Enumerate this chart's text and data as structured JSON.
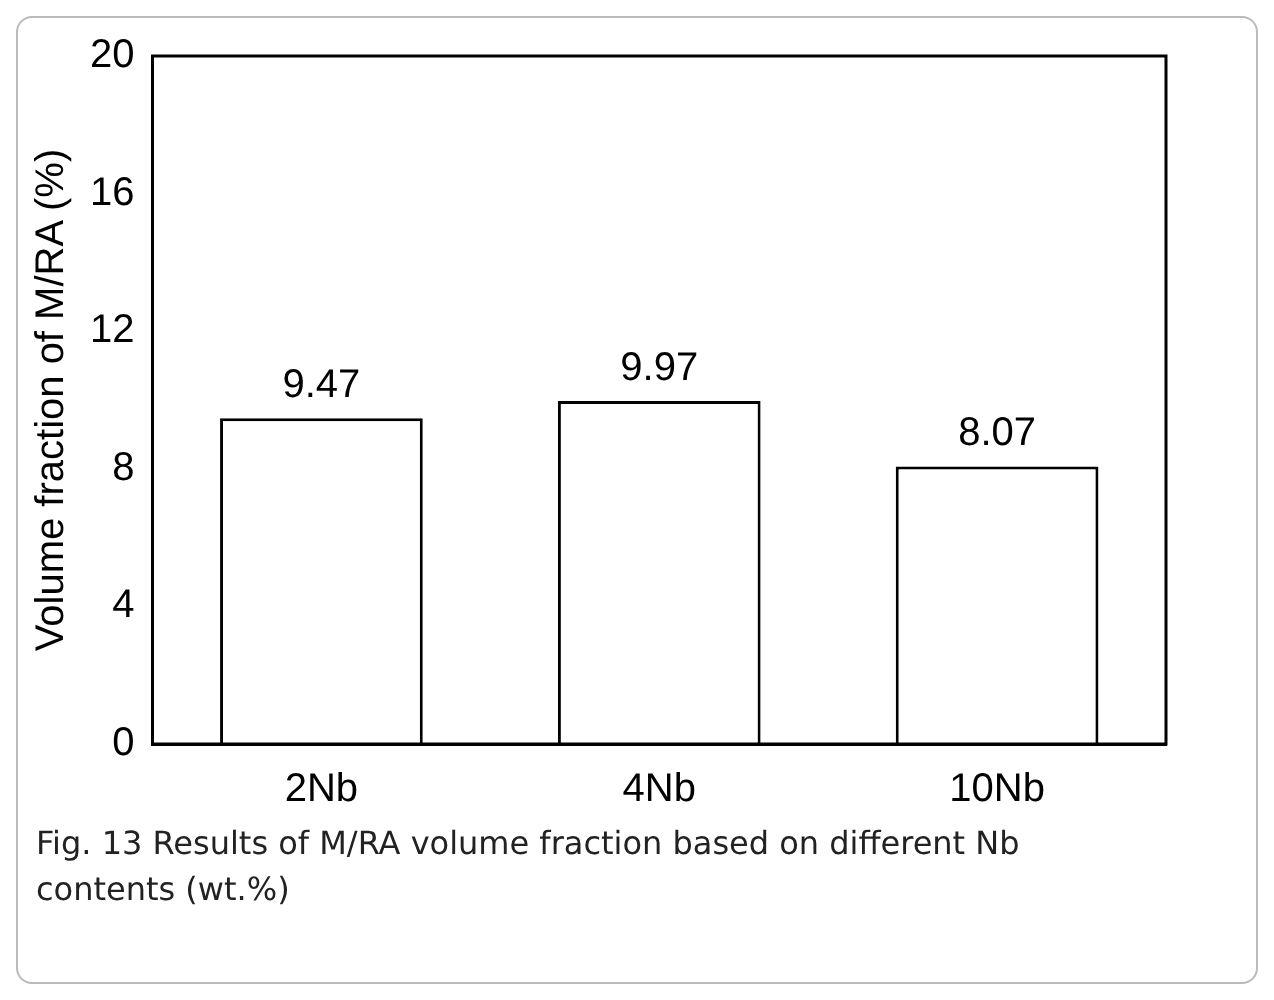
{
  "chart_data": {
    "type": "bar",
    "ylabel": "Volume fraction of M/RA (%)",
    "categories": [
      "2Nb",
      "4Nb",
      "10Nb"
    ],
    "values": [
      9.47,
      9.97,
      8.07
    ],
    "color": "#ffffff",
    "ylim": [
      0,
      20
    ],
    "yticks": [
      0,
      4,
      8,
      12,
      16,
      20
    ],
    "grid": false,
    "legend": false,
    "data_labels": true,
    "annotations": [
      "Fig. 13 Results of M/RA volume fraction based on different Nb contents (wt.%)"
    ]
  }
}
